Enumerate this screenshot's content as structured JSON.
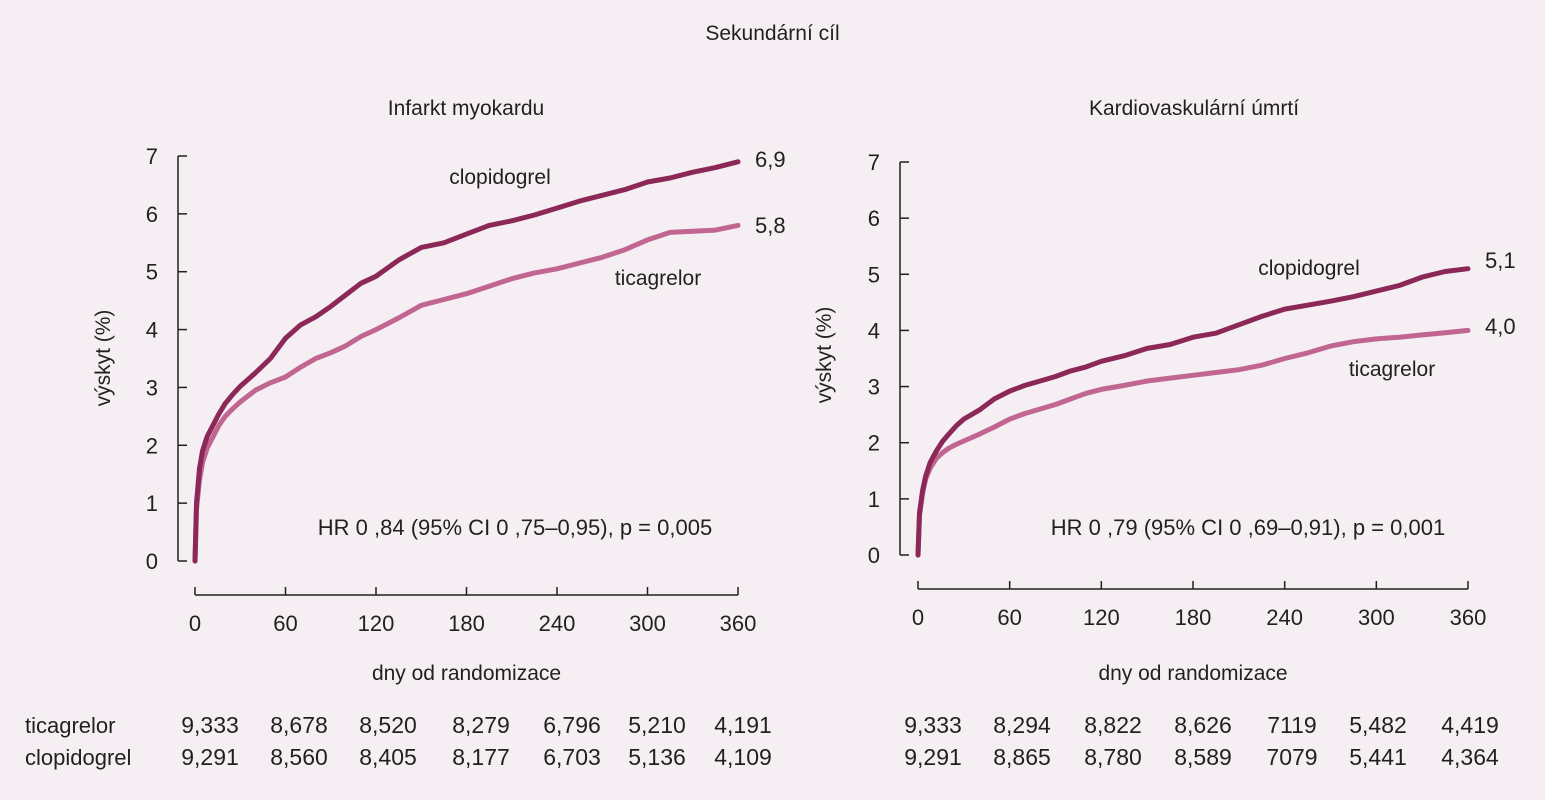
{
  "figure_title": "Sekundární cíl",
  "colors": {
    "clopidogrel": "#8b2858",
    "ticagrelor": "#c06690",
    "axis": "#231f20",
    "background": "#f5eef2"
  },
  "chart_data": [
    {
      "type": "line",
      "title": "Infarkt myokardu",
      "xlabel": "dny od randomizace",
      "ylabel": "výskyt (%)",
      "xlim": [
        0,
        360
      ],
      "ylim": [
        0,
        7
      ],
      "xticks": [
        "0",
        "60",
        "120",
        "180",
        "240",
        "300",
        "360"
      ],
      "yticks": [
        "0",
        "1",
        "2",
        "3",
        "4",
        "5",
        "6",
        "7"
      ],
      "annotation": "HR 0 ,84 (95% CI 0   ,75–0,95), p  = 0,005",
      "series": [
        {
          "name": "clopidogrel",
          "end_label": "6,9",
          "x": [
            0,
            1,
            3,
            5,
            8,
            12,
            16,
            20,
            25,
            30,
            40,
            50,
            60,
            70,
            80,
            90,
            100,
            110,
            120,
            135,
            150,
            165,
            180,
            195,
            210,
            225,
            240,
            255,
            270,
            285,
            300,
            315,
            330,
            345,
            360
          ],
          "y": [
            0,
            1.0,
            1.6,
            1.9,
            2.15,
            2.35,
            2.55,
            2.72,
            2.88,
            3.02,
            3.25,
            3.5,
            3.85,
            4.08,
            4.22,
            4.4,
            4.6,
            4.8,
            4.92,
            5.2,
            5.42,
            5.5,
            5.65,
            5.8,
            5.88,
            5.98,
            6.1,
            6.22,
            6.32,
            6.42,
            6.55,
            6.62,
            6.72,
            6.8,
            6.9
          ]
        },
        {
          "name": "ticagrelor",
          "end_label": "5,8",
          "x": [
            0,
            1,
            3,
            5,
            8,
            12,
            16,
            20,
            25,
            30,
            40,
            50,
            60,
            70,
            80,
            90,
            100,
            110,
            120,
            135,
            150,
            165,
            180,
            195,
            210,
            225,
            240,
            255,
            270,
            285,
            300,
            315,
            330,
            345,
            360
          ],
          "y": [
            0,
            0.9,
            1.4,
            1.7,
            1.95,
            2.15,
            2.35,
            2.5,
            2.63,
            2.75,
            2.95,
            3.08,
            3.18,
            3.35,
            3.5,
            3.6,
            3.72,
            3.88,
            4.0,
            4.2,
            4.42,
            4.52,
            4.62,
            4.75,
            4.88,
            4.98,
            5.05,
            5.15,
            5.25,
            5.38,
            5.55,
            5.68,
            5.7,
            5.72,
            5.8
          ]
        }
      ],
      "risk_table": {
        "row_labels": [
          "ticagrelor",
          "clopidogrel"
        ],
        "ticagrelor": [
          "9,333",
          "8,678",
          "8,520",
          "8,279",
          "6,796",
          "5,210",
          "4,191"
        ],
        "clopidogrel": [
          "9,291",
          "8,560",
          "8,405",
          "8,177",
          "6,703",
          "5,136",
          "4,109"
        ]
      }
    },
    {
      "type": "line",
      "title": "Kardiovaskulární úmrtí",
      "xlabel": "dny od randomizace",
      "ylabel": "výskyt (%)",
      "xlim": [
        0,
        360
      ],
      "ylim": [
        0,
        7
      ],
      "xticks": [
        "0",
        "60",
        "120",
        "180",
        "240",
        "300",
        "360"
      ],
      "yticks": [
        "0",
        "1",
        "2",
        "3",
        "4",
        "5",
        "6",
        "7"
      ],
      "annotation": "HR 0 ,79 (95% CI 0   ,69–0,91), p  = 0,001",
      "series": [
        {
          "name": "clopidogrel",
          "end_label": "5,1",
          "x": [
            0,
            1,
            3,
            5,
            8,
            12,
            16,
            20,
            25,
            30,
            40,
            50,
            60,
            70,
            80,
            90,
            100,
            110,
            120,
            135,
            150,
            165,
            180,
            195,
            210,
            225,
            240,
            255,
            270,
            285,
            300,
            315,
            330,
            345,
            360
          ],
          "y": [
            0,
            0.75,
            1.15,
            1.4,
            1.65,
            1.85,
            2.02,
            2.15,
            2.3,
            2.42,
            2.58,
            2.78,
            2.92,
            3.02,
            3.1,
            3.18,
            3.28,
            3.35,
            3.45,
            3.55,
            3.68,
            3.75,
            3.88,
            3.95,
            4.1,
            4.25,
            4.38,
            4.45,
            4.52,
            4.6,
            4.7,
            4.8,
            4.95,
            5.05,
            5.1
          ]
        },
        {
          "name": "ticagrelor",
          "end_label": "4,0",
          "x": [
            0,
            1,
            3,
            5,
            8,
            12,
            16,
            20,
            25,
            30,
            40,
            50,
            60,
            70,
            80,
            90,
            100,
            110,
            120,
            135,
            150,
            165,
            180,
            195,
            210,
            225,
            240,
            255,
            270,
            285,
            300,
            315,
            330,
            345,
            360
          ],
          "y": [
            0,
            0.7,
            1.1,
            1.35,
            1.55,
            1.72,
            1.82,
            1.9,
            1.97,
            2.03,
            2.15,
            2.28,
            2.42,
            2.52,
            2.6,
            2.68,
            2.78,
            2.88,
            2.95,
            3.02,
            3.1,
            3.15,
            3.2,
            3.25,
            3.3,
            3.38,
            3.5,
            3.6,
            3.72,
            3.8,
            3.85,
            3.88,
            3.92,
            3.96,
            4.0
          ]
        }
      ],
      "risk_table": {
        "row_labels": [],
        "ticagrelor": [
          "9,333",
          "8,294",
          "8,822",
          "8,626",
          "7119",
          "5,482",
          "4,419"
        ],
        "clopidogrel": [
          "9,291",
          "8,865",
          "8,780",
          "8,589",
          "7079",
          "5,441",
          "4,364"
        ]
      }
    }
  ]
}
